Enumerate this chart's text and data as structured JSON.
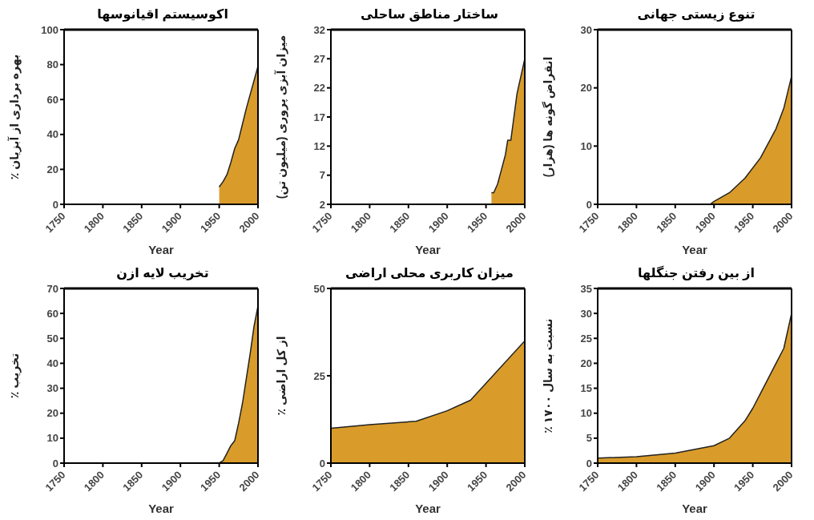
{
  "chart_data": [
    {
      "type": "area",
      "title": "اکوسیستم اقیانوسها",
      "xlabel": "Year",
      "ylabel": "٪ بهره برداری از آبزیان",
      "color": "#d99c2b",
      "x": [
        1950,
        1955,
        1960,
        1965,
        1970,
        1975,
        1980,
        1985,
        1990,
        1995,
        2000
      ],
      "values": [
        10,
        13,
        17,
        24,
        32,
        37,
        46,
        55,
        63,
        71,
        79
      ],
      "xlim": [
        1750,
        2000
      ],
      "xticks": [
        1750,
        1800,
        1850,
        1900,
        1950,
        2000
      ],
      "ylim": [
        0,
        100
      ],
      "yticks": [
        0,
        20,
        40,
        60,
        80,
        100
      ]
    },
    {
      "type": "area",
      "title": "ساختار مناطق ساحلی",
      "xlabel": "Year",
      "ylabel": "میزان آبزی پروری (میلیون تن)",
      "color": "#d99c2b",
      "x": [
        1957,
        1960,
        1965,
        1970,
        1975,
        1978,
        1982,
        1985,
        1990,
        1995,
        2000
      ],
      "values": [
        4,
        4,
        5.5,
        8,
        10.5,
        13,
        13,
        16,
        21,
        24,
        27
      ],
      "xlim": [
        1750,
        2000
      ],
      "xticks": [
        1750,
        1800,
        1850,
        1900,
        1950,
        2000
      ],
      "ylim": [
        2,
        32
      ],
      "yticks": [
        2,
        7,
        12,
        17,
        22,
        27,
        32
      ]
    },
    {
      "type": "area",
      "title": "تنوع زیستی جهانی",
      "xlabel": "Year",
      "ylabel": "انقراض گونه ها (هزار)",
      "color": "#d99c2b",
      "x": [
        1750,
        1895,
        1900,
        1920,
        1940,
        1960,
        1980,
        1990,
        2000
      ],
      "values": [
        0,
        0,
        0.5,
        2,
        4.5,
        8,
        13,
        16.5,
        22
      ],
      "xlim": [
        1750,
        2000
      ],
      "xticks": [
        1750,
        1800,
        1850,
        1900,
        1950,
        2000
      ],
      "ylim": [
        0,
        30
      ],
      "yticks": [
        0,
        10,
        20,
        30
      ]
    },
    {
      "type": "area",
      "title": "تخریب لایه ازن",
      "xlabel": "Year",
      "ylabel": "٪ تخریب",
      "color": "#d99c2b",
      "x": [
        1950,
        1955,
        1960,
        1965,
        1970,
        1975,
        1980,
        1985,
        1990,
        1995,
        2000
      ],
      "values": [
        0,
        1,
        4,
        7,
        9,
        16,
        24,
        34,
        44,
        55,
        63
      ],
      "xlim": [
        1750,
        2000
      ],
      "xticks": [
        1750,
        1800,
        1850,
        1900,
        1950,
        2000
      ],
      "ylim": [
        0,
        70
      ],
      "yticks": [
        0,
        10,
        20,
        30,
        40,
        50,
        60,
        70
      ]
    },
    {
      "type": "area",
      "title": "میزان کاربری محلی اراضی",
      "xlabel": "Year",
      "ylabel": "٪ از کل اراضی",
      "color": "#d99c2b",
      "x": [
        1750,
        1800,
        1860,
        1900,
        1930,
        2000
      ],
      "values": [
        10,
        11,
        12,
        15,
        18,
        35
      ],
      "xlim": [
        1750,
        2000
      ],
      "xticks": [
        1750,
        1800,
        1850,
        1900,
        1950,
        2000
      ],
      "ylim": [
        0,
        50
      ],
      "yticks": [
        0,
        25,
        50
      ]
    },
    {
      "type": "area",
      "title": "از بین رفتن جنگلها",
      "xlabel": "Year",
      "ylabel": "٪ نسبت به سال ۱۷۰۰",
      "color": "#d99c2b",
      "x": [
        1750,
        1800,
        1850,
        1900,
        1920,
        1940,
        1950,
        1960,
        1970,
        1980,
        1990,
        2000
      ],
      "values": [
        1,
        1.3,
        2,
        3.5,
        5,
        8.5,
        11,
        14,
        17,
        20,
        23,
        30
      ],
      "xlim": [
        1750,
        2000
      ],
      "xticks": [
        1750,
        1800,
        1850,
        1900,
        1950,
        2000
      ],
      "ylim": [
        0,
        35
      ],
      "yticks": [
        0,
        5,
        10,
        15,
        20,
        25,
        30,
        35
      ]
    }
  ]
}
